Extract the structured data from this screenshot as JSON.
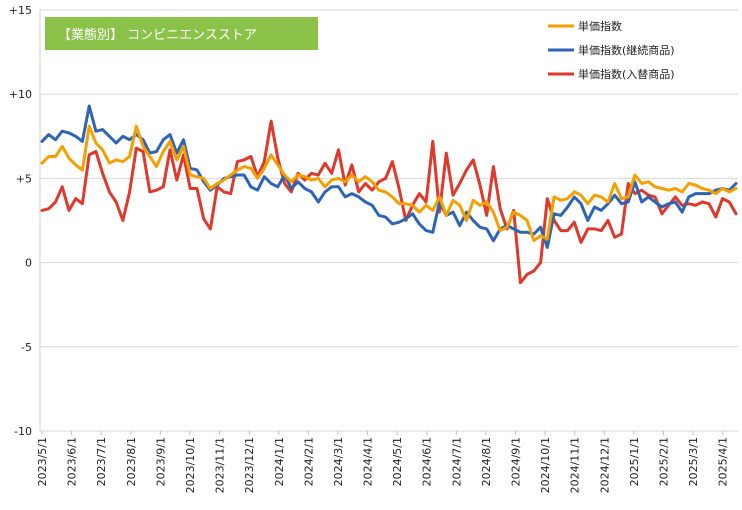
{
  "chart_data": {
    "type": "line",
    "title": "【業態別】 コンビニエンスストア",
    "title_bg_color": "#8bc34a",
    "ylim": [
      -10,
      15
    ],
    "yticks": [
      {
        "value": 15,
        "label": "+15"
      },
      {
        "value": 10,
        "label": "+10"
      },
      {
        "value": 5,
        "label": "+5"
      },
      {
        "value": 0,
        "label": "0"
      },
      {
        "value": -5,
        "label": "-5"
      },
      {
        "value": -10,
        "label": "-10"
      }
    ],
    "grid": "horizontal",
    "legend_position": "top-right",
    "xticks": [
      "2023/5/1",
      "2023/6/1",
      "2023/7/1",
      "2023/8/1",
      "2023/9/1",
      "2023/10/1",
      "2023/11/1",
      "2023/12/1",
      "2024/1/1",
      "2024/2/1",
      "2024/3/1",
      "2024/4/1",
      "2024/5/1",
      "2024/6/1",
      "2024/7/1",
      "2024/8/1",
      "2024/9/1",
      "2024/10/1",
      "2024/11/1",
      "2024/12/1",
      "2025/1/1",
      "2025/2/1",
      "2025/3/1",
      "2025/4/1"
    ],
    "series": [
      {
        "name": "単価指数",
        "color": "#f5a000",
        "values": [
          5.9,
          6.3,
          6.3,
          6.9,
          6.2,
          5.8,
          5.5,
          8.1,
          7.1,
          6.7,
          5.9,
          6.1,
          6.0,
          6.3,
          8.1,
          6.9,
          6.3,
          5.7,
          6.6,
          7.2,
          6.1,
          6.9,
          5.2,
          5.1,
          5.0,
          4.4,
          4.7,
          4.9,
          5.2,
          5.5,
          5.7,
          5.6,
          5.0,
          5.6,
          6.4,
          5.8,
          5.2,
          4.8,
          5.2,
          5.1,
          4.9,
          5.0,
          4.5,
          4.9,
          5.0,
          4.8,
          5.2,
          4.8,
          5.1,
          4.8,
          4.3,
          4.2,
          3.9,
          3.5,
          3.5,
          3.4,
          3.0,
          3.4,
          3.1,
          3.9,
          2.8,
          3.7,
          3.4,
          2.5,
          3.7,
          3.4,
          3.6,
          3.0,
          1.9,
          2.1,
          3.0,
          2.8,
          2.5,
          1.3,
          1.6,
          1.4,
          3.9,
          3.7,
          3.8,
          4.2,
          4.0,
          3.5,
          4.0,
          3.9,
          3.6,
          4.7,
          3.8,
          3.9,
          5.2,
          4.7,
          4.8,
          4.5,
          4.4,
          4.3,
          4.4,
          4.2,
          4.7,
          4.6,
          4.4,
          4.3,
          4.1,
          4.4,
          4.2,
          4.4
        ]
      },
      {
        "name": "単価指数(継続商品)",
        "color": "#2e64b5",
        "values": [
          7.2,
          7.6,
          7.3,
          7.8,
          7.7,
          7.5,
          7.2,
          9.3,
          7.8,
          7.9,
          7.5,
          7.1,
          7.5,
          7.3,
          7.6,
          7.3,
          6.5,
          6.6,
          7.3,
          7.6,
          6.5,
          7.3,
          5.6,
          5.5,
          4.8,
          4.3,
          4.6,
          5.0,
          5.1,
          5.2,
          5.2,
          4.5,
          4.3,
          5.1,
          4.7,
          4.5,
          5.2,
          4.4,
          4.8,
          4.4,
          4.2,
          3.6,
          4.2,
          4.5,
          4.5,
          3.9,
          4.1,
          3.9,
          3.6,
          3.4,
          2.8,
          2.7,
          2.3,
          2.4,
          2.6,
          2.9,
          2.3,
          1.9,
          1.8,
          3.6,
          2.8,
          3.0,
          2.2,
          3.0,
          2.5,
          2.1,
          2.0,
          1.3,
          2.0,
          2.2,
          2.0,
          1.8,
          1.8,
          1.7,
          2.1,
          0.9,
          2.9,
          2.8,
          3.3,
          3.9,
          3.5,
          2.5,
          3.3,
          3.1,
          3.5,
          4.0,
          3.5,
          3.6,
          4.8,
          3.6,
          3.9,
          3.6,
          3.3,
          3.5,
          3.6,
          3.0,
          3.9,
          4.1,
          4.1,
          4.1,
          4.3,
          4.4,
          4.3,
          4.7
        ]
      },
      {
        "name": "単価指数(入替商品)",
        "color": "#e0382b",
        "values": [
          3.1,
          3.2,
          3.6,
          4.5,
          3.1,
          3.8,
          3.5,
          6.4,
          6.6,
          5.3,
          4.2,
          3.6,
          2.5,
          4.2,
          6.8,
          6.6,
          4.2,
          4.3,
          4.5,
          6.7,
          4.9,
          6.4,
          4.4,
          4.4,
          2.6,
          2.0,
          4.5,
          4.2,
          4.1,
          6.0,
          6.1,
          6.3,
          5.1,
          6.0,
          8.4,
          6.2,
          4.7,
          4.2,
          5.3,
          4.9,
          5.3,
          5.2,
          5.9,
          5.3,
          6.7,
          4.6,
          5.8,
          4.2,
          4.7,
          4.3,
          4.8,
          5.0,
          6.0,
          4.4,
          2.5,
          3.4,
          4.1,
          3.6,
          7.2,
          3.0,
          6.5,
          4.0,
          4.7,
          5.5,
          6.1,
          4.6,
          2.8,
          5.7,
          3.2,
          2.0,
          3.1,
          -1.2,
          -0.7,
          -0.5,
          0.0,
          3.8,
          2.5,
          1.9,
          1.9,
          2.4,
          1.2,
          2.0,
          2.0,
          1.9,
          2.5,
          1.5,
          1.7,
          4.7,
          4.1,
          4.3,
          4.0,
          3.9,
          2.9,
          3.4,
          3.9,
          3.4,
          3.5,
          3.4,
          3.6,
          3.5,
          2.7,
          3.8,
          3.6,
          2.9
        ]
      }
    ]
  }
}
